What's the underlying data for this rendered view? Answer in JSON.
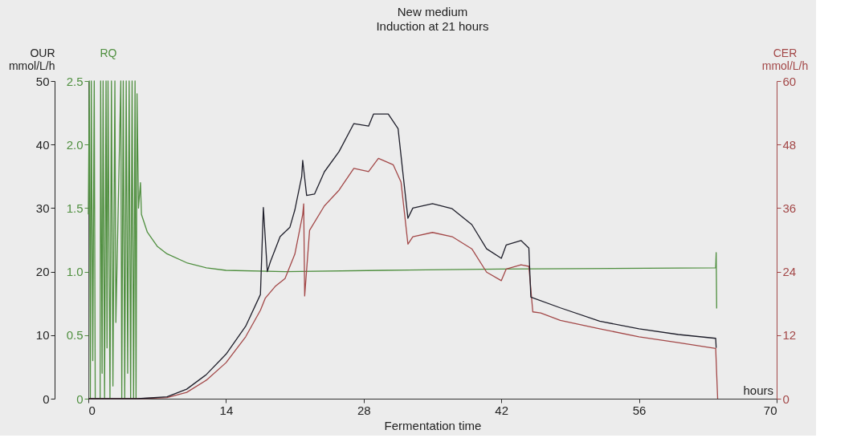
{
  "chart_data": {
    "type": "line",
    "title": "New medium",
    "subtitle": "Induction at 21 hours",
    "xlabel": "Fermentation time",
    "ylabel": "OUR\nmmol/L/h",
    "y2label": "CER\nmmol/L/h",
    "y3label": "RQ",
    "xlim": [
      0,
      70
    ],
    "xticks": [
      0,
      14,
      28,
      42,
      56,
      70
    ],
    "ylim": [
      0,
      50
    ],
    "yticks": [
      0,
      10,
      20,
      30,
      40,
      50
    ],
    "y2lim": [
      0,
      60
    ],
    "y2ticks": [
      0,
      12,
      24,
      36,
      48,
      60
    ],
    "y3lim": [
      0,
      2.5
    ],
    "y3ticks": [
      0,
      0.5,
      {
        "value": 1,
        "label": "1.0"
      },
      1.5,
      {
        "value": 2,
        "label": "2.0"
      },
      2.5
    ],
    "annotations": [
      "hours"
    ],
    "series": [
      {
        "color": "#4f8f3f",
        "axis": "y3",
        "x": [
          0,
          0.1,
          0.2,
          0.3,
          0.45,
          0.6,
          0.7,
          1.2,
          1.25,
          1.4,
          1.5,
          1.65,
          1.8,
          1.9,
          2.0,
          2.2,
          2.35,
          2.5,
          2.7,
          2.8,
          3.3,
          3.4,
          3.55,
          3.7,
          3.85,
          4.0,
          4.15,
          4.3,
          4.45,
          4.6,
          4.75,
          4.85,
          4.95,
          5.1,
          5.3,
          5.4,
          6,
          7,
          8,
          10,
          12,
          14,
          20,
          30,
          42,
          63.8,
          63.85,
          63.9
        ],
        "values": [
          1.45,
          2.5,
          0,
          2.5,
          0.3,
          2.5,
          0,
          0,
          2.5,
          0.2,
          2.5,
          0,
          2.5,
          0.4,
          2.5,
          0,
          2.5,
          0.1,
          2.5,
          0.6,
          2.5,
          0,
          2.5,
          0,
          2.5,
          0.2,
          2.5,
          0,
          2.5,
          0,
          2.5,
          0,
          2.4,
          1.5,
          1.7,
          1.45,
          1.31,
          1.2,
          1.14,
          1.07,
          1.03,
          1.01,
          1.0,
          1.01,
          1.02,
          1.03,
          1.15,
          0.71
        ]
      },
      {
        "color": "#a34848",
        "axis": "y2",
        "x": [
          0,
          5,
          8,
          10,
          12,
          14,
          16,
          17.5,
          18,
          19,
          20,
          21,
          21.8,
          21.9,
          22.0,
          22.5,
          24,
          25.5,
          27,
          28.5,
          29.5,
          31,
          31.8,
          32.5,
          33,
          35,
          37,
          39,
          40.5,
          42,
          42.5,
          44,
          44.8,
          45.2,
          46,
          48,
          52,
          56,
          60,
          63.8,
          64
        ],
        "values": [
          0,
          0,
          0.2,
          1.2,
          3.5,
          6.8,
          11.7,
          16.7,
          19,
          21.2,
          22.7,
          27.3,
          34.8,
          36.8,
          19.4,
          31.8,
          36.4,
          39.4,
          43.5,
          42.9,
          45.4,
          44.2,
          40.9,
          29.2,
          30.6,
          31.4,
          30.6,
          28.3,
          23.9,
          22.3,
          24.5,
          25.3,
          25,
          16.4,
          16.2,
          14.8,
          13.2,
          11.7,
          10.6,
          9.5,
          0
        ]
      },
      {
        "color": "#1e1e2a",
        "axis": "y",
        "x": [
          0,
          5,
          8,
          10,
          12,
          14,
          16,
          17.5,
          17.8,
          18.2,
          18.5,
          19.5,
          20.5,
          21,
          21.7,
          21.8,
          22.2,
          23,
          24,
          25.5,
          27,
          28.5,
          29,
          30.5,
          31.5,
          32,
          32.5,
          33,
          35,
          37,
          39,
          40.5,
          42,
          42.5,
          44,
          44.8,
          45,
          48,
          52,
          56,
          60,
          63.8,
          63.85
        ],
        "values": [
          0,
          0,
          0.3,
          1.5,
          3.8,
          7,
          11.4,
          16.4,
          30.1,
          20,
          21.5,
          25.5,
          27,
          29.7,
          35,
          37.5,
          32,
          32.2,
          35.7,
          38.9,
          43.3,
          42.9,
          44.8,
          44.8,
          42.5,
          35.4,
          28.4,
          30,
          30.7,
          29.9,
          27.4,
          23.6,
          22.1,
          24.2,
          24.9,
          23.7,
          16,
          14.3,
          12.2,
          11,
          10.1,
          9.5,
          8
        ]
      }
    ]
  }
}
